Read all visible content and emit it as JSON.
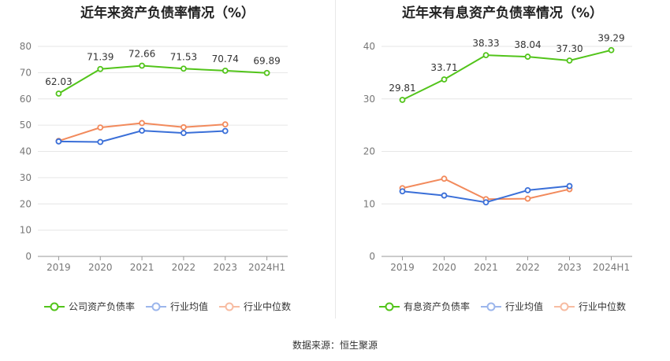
{
  "source": "数据来源：恒生聚源",
  "colors": {
    "main": "#52c41a",
    "avg": "#3a6fd8",
    "median": "#f28a5c"
  },
  "chart_data": [
    {
      "type": "line",
      "title": "近年来资产负债率情况（%）",
      "categories": [
        "2019",
        "2020",
        "2021",
        "2022",
        "2023",
        "2024H1"
      ],
      "ylim": [
        0,
        80
      ],
      "yticks": [
        0,
        10,
        20,
        30,
        40,
        50,
        60,
        70,
        80
      ],
      "grid": true,
      "legend_position": "bottom",
      "series": [
        {
          "name": "公司资产负债率",
          "color": "#52c41a",
          "labels": true,
          "values": [
            62.03,
            71.39,
            72.66,
            71.53,
            70.74,
            69.89
          ]
        },
        {
          "name": "行业均值",
          "color": "#3a6fd8",
          "labels": false,
          "values": [
            43.8,
            43.6,
            47.9,
            47.0,
            47.8,
            null
          ]
        },
        {
          "name": "行业中位数",
          "color": "#f28a5c",
          "labels": false,
          "values": [
            44.0,
            49.1,
            50.8,
            49.2,
            50.3,
            null
          ]
        }
      ]
    },
    {
      "type": "line",
      "title": "近年来有息资产负债率情况（%）",
      "categories": [
        "2019",
        "2020",
        "2021",
        "2022",
        "2023",
        "2024H1"
      ],
      "ylim": [
        0,
        40
      ],
      "yticks": [
        0,
        10,
        20,
        30,
        40
      ],
      "grid": true,
      "legend_position": "bottom",
      "series": [
        {
          "name": "有息资产负债率",
          "color": "#52c41a",
          "labels": true,
          "values": [
            29.81,
            33.71,
            38.33,
            38.04,
            37.3,
            39.29
          ]
        },
        {
          "name": "行业均值",
          "color": "#3a6fd8",
          "labels": false,
          "values": [
            12.4,
            11.6,
            10.3,
            12.6,
            13.4,
            null
          ]
        },
        {
          "name": "行业中位数",
          "color": "#f28a5c",
          "labels": false,
          "values": [
            13.0,
            14.8,
            10.9,
            11.0,
            12.8,
            null
          ]
        }
      ]
    }
  ]
}
